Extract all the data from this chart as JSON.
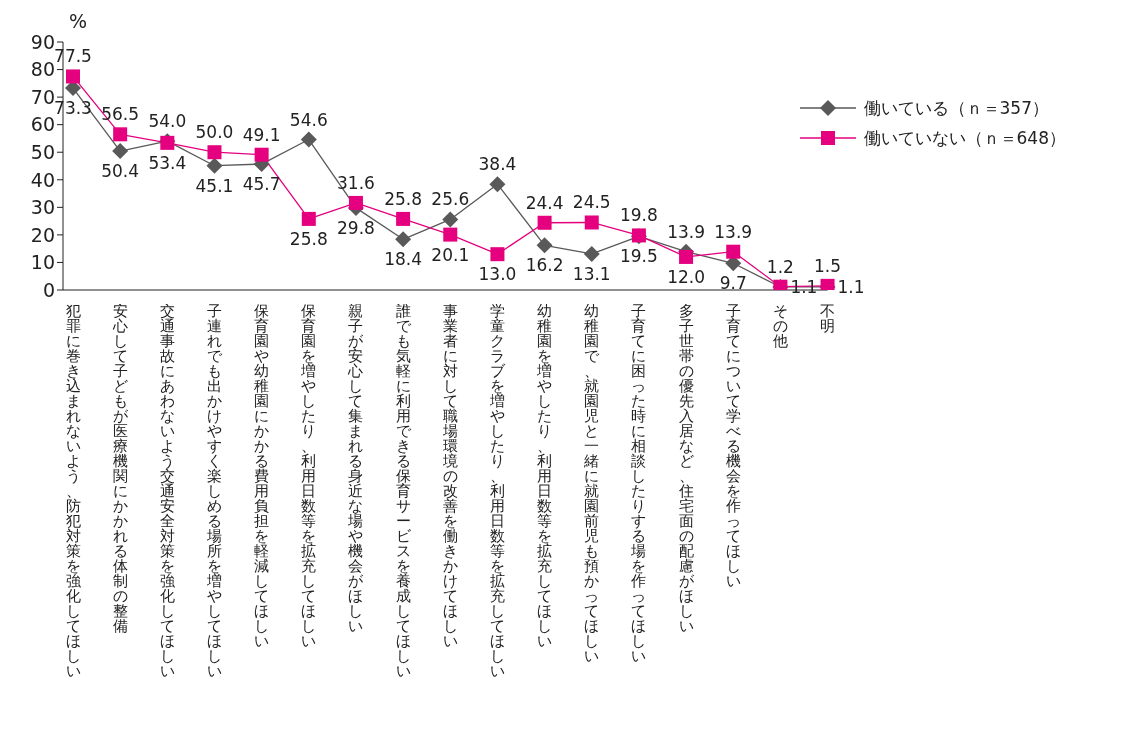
{
  "chart_data": {
    "type": "line",
    "ylabel": "%",
    "categories": [
      "犯罪に巻き込まれないよう、防犯対策を強化してほしい",
      "安心して子どもが医療機関にかかれる体制の整備",
      "交通事故にあわないよう交通安全対策を強化してほしい",
      "子連れでも出かけやすく楽しめる場所を増やしてほしい",
      "保育園や幼稚園にかかる費用負担を軽減してほしい",
      "保育園を増やしたり、利用日数等を拡充してほしい",
      "親子が安心して集まれる身近な場や機会がほしい",
      "誰でも気軽に利用できる保育サービスを養成してほしい",
      "事業者に対して職場環境の改善を働きかけてほしい",
      "学童クラブを増やしたり、利用日数等を拡充してほしい",
      "幼稚園を増やしたり、利用日数等を拡充してほしい",
      "幼稚園で、就園児と一緒に就園前児も預かってほしい",
      "子育てに困った時に相談したりする場を作ってほしい",
      "多子世帯の優先入居など、住宅面の配慮がほしい",
      "子育てについて学べる機会を作ってほしい",
      "その他",
      "不明"
    ],
    "series": [
      {
        "name": "働いている（ｎ＝357）",
        "color": "#595959",
        "marker": "diamond",
        "values": [
          73.3,
          50.4,
          54.0,
          45.1,
          45.7,
          54.6,
          29.8,
          18.4,
          25.6,
          38.4,
          16.2,
          13.1,
          19.5,
          13.9,
          9.7,
          1.1,
          1.1
        ],
        "value_labels": [
          "73.3",
          "50.4",
          "54.0",
          "45.1",
          "45.7",
          "54.6",
          "29.8",
          "18.4",
          "25.6",
          "38.4",
          "16.2",
          "13.1",
          "19.5",
          "13.9",
          "9.7",
          "1.1",
          "1.1"
        ]
      },
      {
        "name": "働いていない（ｎ＝648）",
        "color": "#e4007f",
        "marker": "square",
        "values": [
          77.5,
          56.5,
          53.4,
          50.0,
          49.1,
          25.8,
          31.6,
          25.8,
          20.1,
          13.0,
          24.4,
          24.5,
          19.8,
          12.0,
          13.9,
          1.2,
          1.5
        ],
        "value_labels": [
          "77.5",
          "56.5",
          "53.4",
          "50.0",
          "49.1",
          "25.8",
          "31.6",
          "25.8",
          "20.1",
          "13.0",
          "24.4",
          "24.5",
          "19.8",
          "12.0",
          "13.9",
          "1.2",
          "1.5"
        ]
      }
    ],
    "ylim": [
      0,
      90
    ],
    "yticks": [
      0,
      10,
      20,
      30,
      40,
      50,
      60,
      70,
      80,
      90
    ],
    "legend": "top right",
    "grid": false
  }
}
